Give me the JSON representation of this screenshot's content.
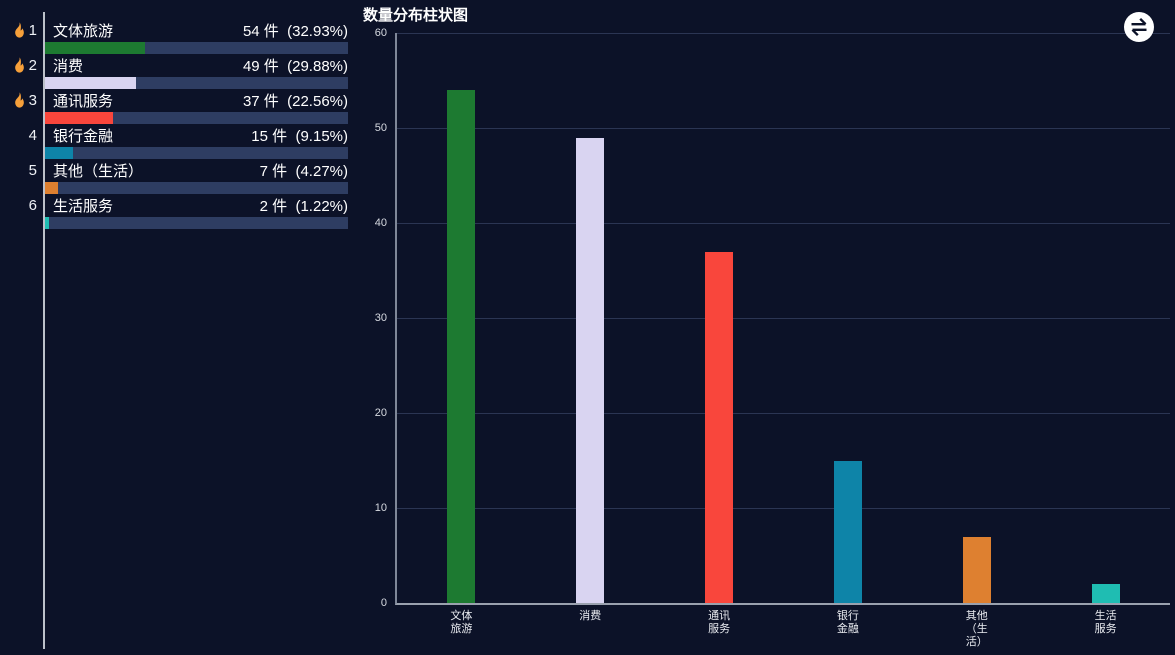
{
  "colors": {
    "background": "#0c1228",
    "grid_line": "#2b3553",
    "axis_line": "#9aa1ae",
    "separator_line": "#bcc1ca",
    "track": "#2e3d62",
    "flame": "#f7a03a",
    "icon_circle": "#ffffff"
  },
  "rank_panel": {
    "items": [
      {
        "rank": "1",
        "hot": true,
        "name": "文体旅游",
        "stat": "54 件  (32.93%)",
        "value": 54,
        "percent": 32.93,
        "color": "#1d7a31"
      },
      {
        "rank": "2",
        "hot": true,
        "name": "消费",
        "stat": "49 件  (29.88%)",
        "value": 49,
        "percent": 29.88,
        "color": "#d9d4f1"
      },
      {
        "rank": "3",
        "hot": true,
        "name": "通讯服务",
        "stat": "37 件  (22.56%)",
        "value": 37,
        "percent": 22.56,
        "color": "#f9463c"
      },
      {
        "rank": "4",
        "hot": false,
        "name": "银行金融",
        "stat": "15 件  (9.15%)",
        "value": 15,
        "percent": 9.15,
        "color": "#0e84a8"
      },
      {
        "rank": "5",
        "hot": false,
        "name": "其他（生活）",
        "stat": "7 件  (4.27%)",
        "value": 7,
        "percent": 4.27,
        "color": "#de8030"
      },
      {
        "rank": "6",
        "hot": false,
        "name": "生活服务",
        "stat": "2 件  (1.22%)",
        "value": 2,
        "percent": 1.22,
        "color": "#1fbdb2"
      }
    ]
  },
  "chart": {
    "title": "数量分布柱状图",
    "toolbox_icon": "swap-icon"
  },
  "chart_data": {
    "type": "bar",
    "title": "数量分布柱状图",
    "categories": [
      "文体旅游",
      "消费",
      "通讯服务",
      "银行金融",
      "其他（生活）",
      "生活服务"
    ],
    "category_label_lines": [
      [
        "文体",
        "旅游"
      ],
      [
        "消费"
      ],
      [
        "通讯",
        "服务"
      ],
      [
        "银行",
        "金融"
      ],
      [
        "其他",
        "（生",
        "活）"
      ],
      [
        "生活",
        "服务"
      ]
    ],
    "values": [
      54,
      49,
      37,
      15,
      7,
      2
    ],
    "unit": "件",
    "series_colors": [
      "#1d7a31",
      "#d9d4f1",
      "#f9463c",
      "#0e84a8",
      "#de8030",
      "#1fbdb2"
    ],
    "xlabel": "",
    "ylabel": "",
    "ylim": [
      0,
      60
    ],
    "yticks": [
      0,
      10,
      20,
      30,
      40,
      50,
      60
    ],
    "grid": true,
    "legend": false
  }
}
